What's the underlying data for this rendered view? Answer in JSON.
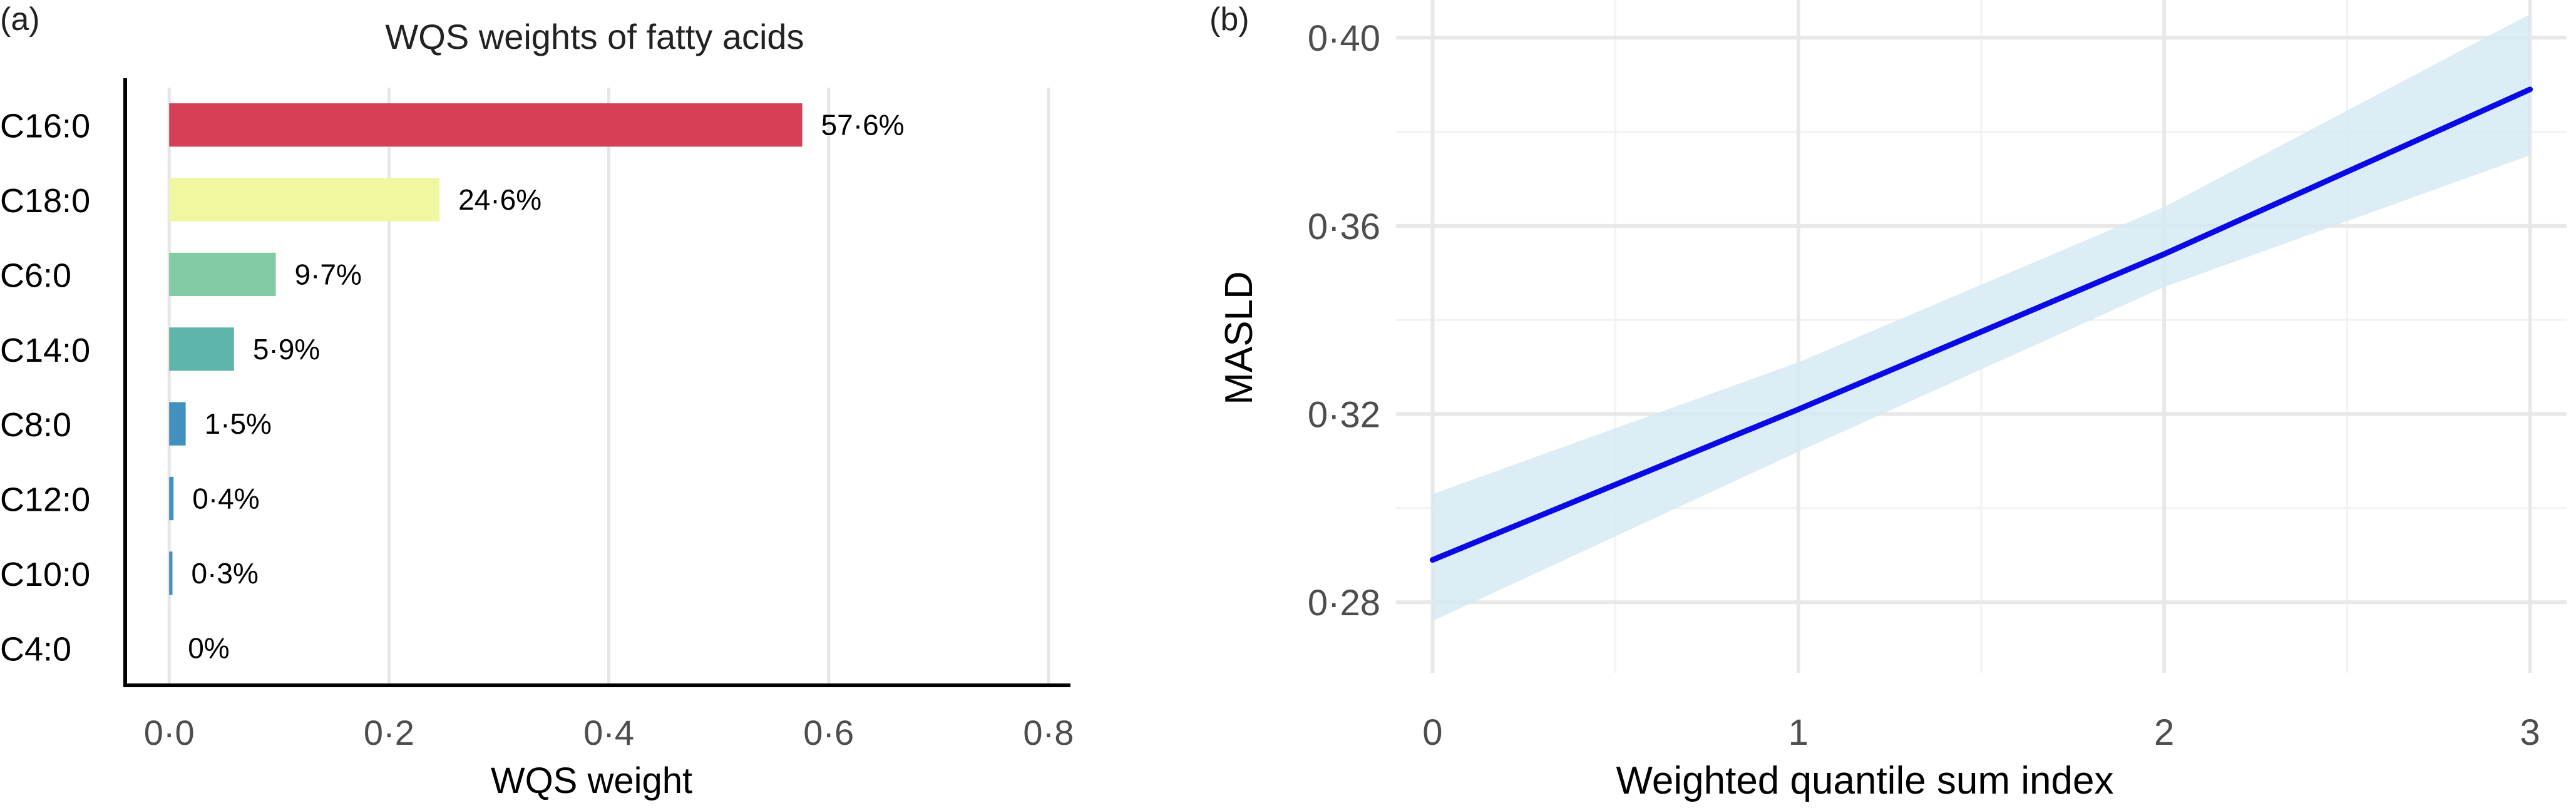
{
  "chart_data": [
    {
      "panel_label": "(a)",
      "type": "bar",
      "orientation": "horizontal",
      "title": "WQS weights of fatty acids",
      "xlabel": "WQS weight",
      "ylabel": "",
      "categories": [
        "C16:0",
        "C18:0",
        "C6:0",
        "C14:0",
        "C8:0",
        "C12:0",
        "C10:0",
        "C4:0"
      ],
      "values": [
        0.576,
        0.246,
        0.097,
        0.059,
        0.015,
        0.004,
        0.003,
        0.0
      ],
      "data_labels": [
        "57·6%",
        "24·6%",
        "9·7%",
        "5·9%",
        "1·5%",
        "0·4%",
        "0·3%",
        "0%"
      ],
      "colors": [
        "#d63f55",
        "#f1f6a1",
        "#82cba4",
        "#5eb5a9",
        "#4090c0",
        "#4090c0",
        "#4090c0",
        "#4090c0"
      ],
      "xlim": [
        -0.04,
        0.82
      ],
      "xticks": [
        0.0,
        0.2,
        0.4,
        0.6,
        0.8
      ],
      "xtick_labels": [
        "0·0",
        "0·2",
        "0·4",
        "0·6",
        "0·8"
      ],
      "grid": "vertical major",
      "legend": "none"
    },
    {
      "panel_label": "(b)",
      "type": "line",
      "title": "",
      "xlabel": "Weighted quantile sum index",
      "ylabel": "MASLD",
      "x": [
        0,
        1,
        2,
        3
      ],
      "series": [
        {
          "values": [
            0.289,
            0.321,
            0.354,
            0.389
          ],
          "color": "#0a0ae6",
          "ci_lower": [
            0.276,
            0.312,
            0.347,
            0.375
          ],
          "ci_upper": [
            0.303,
            0.331,
            0.364,
            0.405
          ],
          "ci_color": "#d4e9f4"
        }
      ],
      "xlim": [
        -0.1,
        3.1
      ],
      "ylim": [
        0.265,
        0.408
      ],
      "xticks": [
        0,
        1,
        2,
        3
      ],
      "xtick_labels": [
        "0",
        "1",
        "2",
        "3"
      ],
      "yticks": [
        0.28,
        0.32,
        0.36,
        0.4
      ],
      "ytick_labels": [
        "0·28",
        "0·32",
        "0·36",
        "0·40"
      ],
      "grid": "major and minor",
      "legend": "none"
    }
  ]
}
